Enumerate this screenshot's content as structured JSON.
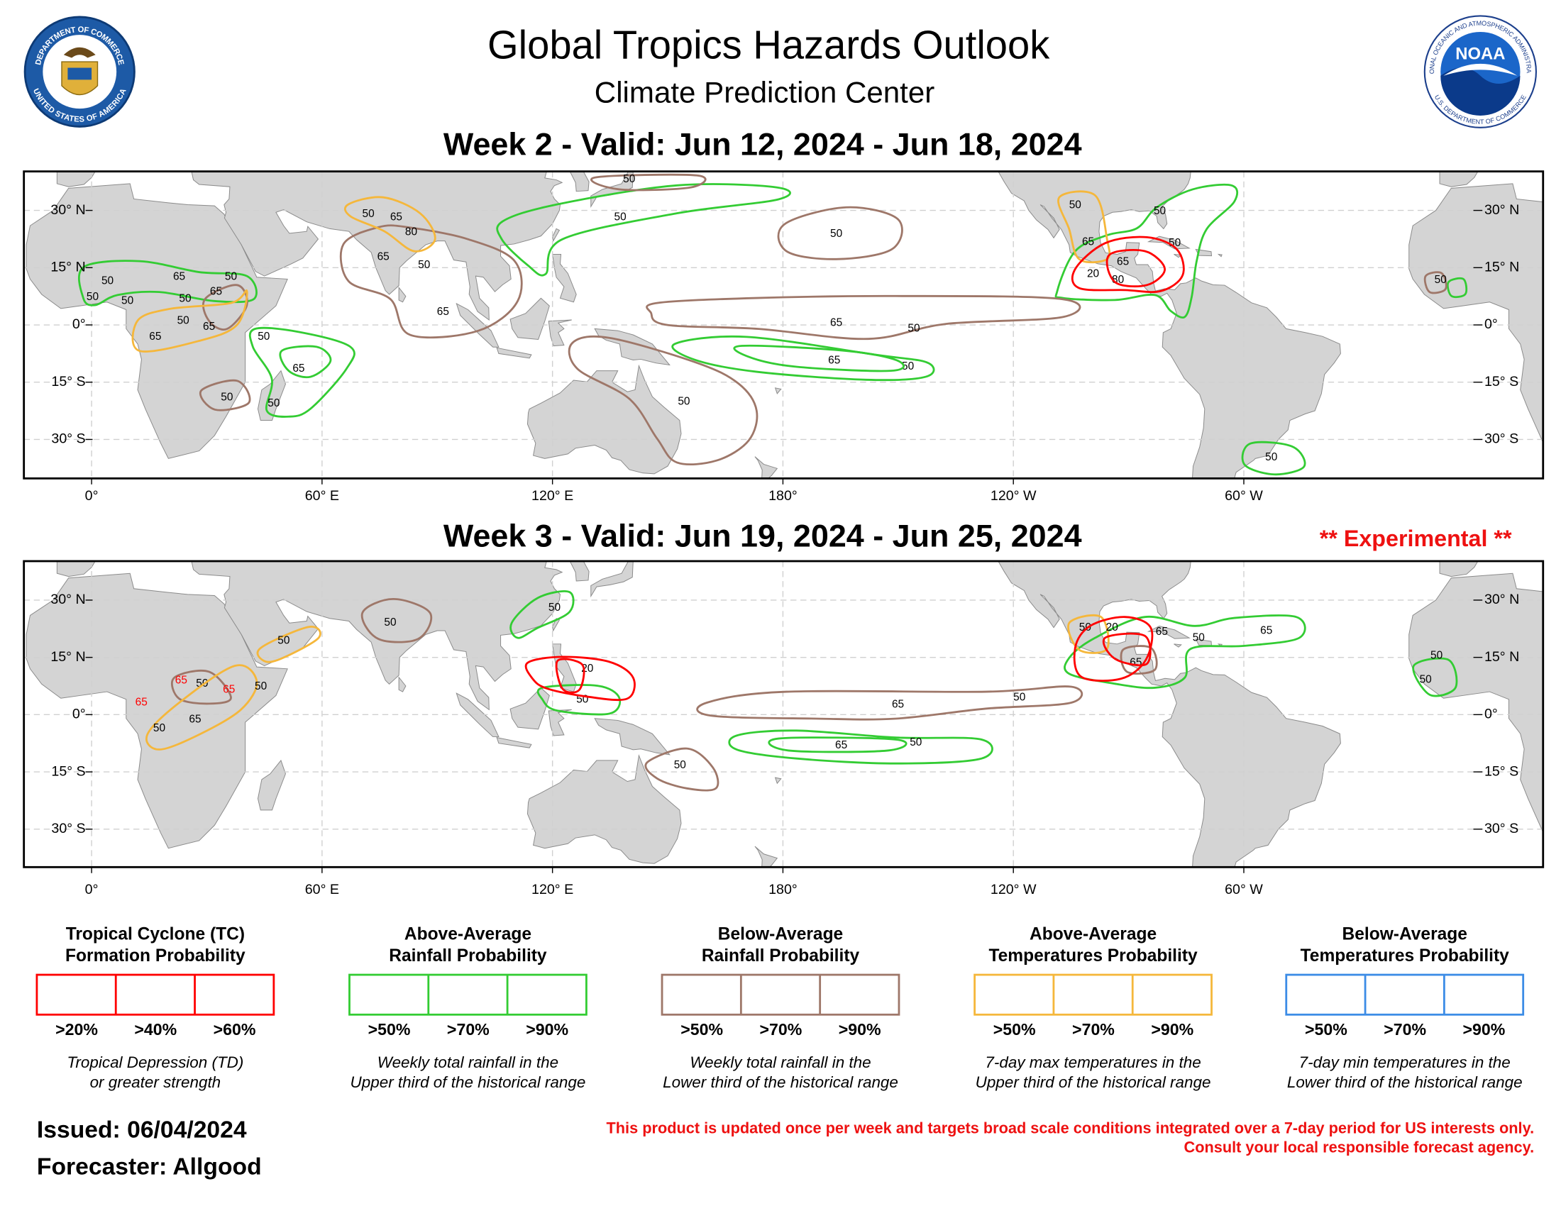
{
  "header": {
    "title": "Global Tropics Hazards Outlook",
    "subtitle": "Climate Prediction Center"
  },
  "logos": {
    "commerce": {
      "top": "DEPARTMENT OF COMMERCE",
      "bottom": "UNITED STATES OF AMERICA"
    },
    "noaa": {
      "name": "NOAA",
      "top": "NATIONAL OCEANIC AND ATMOSPHERIC ADMINISTRATION",
      "bottom": "U.S. DEPARTMENT OF COMMERCE"
    }
  },
  "axes": {
    "lat": [
      "30° N",
      "15° N",
      "0°",
      "15° S",
      "30° S"
    ],
    "lon": [
      "0°",
      "60° E",
      "120° E",
      "180°",
      "120° W",
      "60° W"
    ]
  },
  "maps": [
    {
      "title": "Week 2 - Valid: Jun 12, 2024 - Jun 18, 2024",
      "contour_labels": [
        "50",
        "50",
        "65",
        "50",
        "50",
        "50",
        "65",
        "50",
        "50",
        "65",
        "50",
        "50",
        "50",
        "50",
        "50",
        "65",
        "50",
        "65",
        "50",
        "50",
        "65",
        "50",
        "50",
        "50",
        "65",
        "50",
        "65",
        "50",
        "65",
        "50",
        "65",
        "80",
        "50",
        "65",
        "20",
        "65",
        "80"
      ]
    },
    {
      "title": "Week 3 - Valid: Jun 19, 2024 - Jun 25, 2024",
      "note": "** Experimental **",
      "contour_labels": [
        "50",
        "50",
        "65",
        "50",
        "65",
        "50",
        "65",
        "50",
        "50",
        "50",
        "50",
        "65",
        "50",
        "50",
        "65",
        "50",
        "65",
        "65",
        "65",
        "65",
        "50",
        "50",
        "50",
        "20",
        "20"
      ]
    }
  ],
  "legend": [
    {
      "title": [
        "Tropical Cyclone (TC)",
        "Formation Probability"
      ],
      "color": "#ff0000",
      "levels": [
        ">20%",
        ">40%",
        ">60%"
      ],
      "description": [
        "Tropical Depression (TD)",
        "or greater strength"
      ]
    },
    {
      "title": [
        "Above-Average",
        "Rainfall Probability"
      ],
      "color": "#33cc33",
      "levels": [
        ">50%",
        ">70%",
        ">90%"
      ],
      "description": [
        "Weekly total rainfall in the",
        "Upper third of the historical range"
      ]
    },
    {
      "title": [
        "Below-Average",
        "Rainfall Probability"
      ],
      "color": "#9e7769",
      "levels": [
        ">50%",
        ">70%",
        ">90%"
      ],
      "description": [
        "Weekly total rainfall in the",
        "Lower third of the historical range"
      ]
    },
    {
      "title": [
        "Above-Average",
        "Temperatures Probability"
      ],
      "color": "#f5b73b",
      "levels": [
        ">50%",
        ">70%",
        ">90%"
      ],
      "description": [
        "7-day max temperatures in the",
        "Upper third of the historical range"
      ]
    },
    {
      "title": [
        "Below-Average",
        "Temperatures Probability"
      ],
      "color": "#3c8ce6",
      "levels": [
        ">50%",
        ">70%",
        ">90%"
      ],
      "description": [
        "7-day min temperatures in the",
        "Lower third of the historical range"
      ]
    }
  ],
  "footer": {
    "issued": "Issued: 06/04/2024",
    "forecaster": "Forecaster: Allgood",
    "disclaimer": [
      "This product is updated once per week and targets broad scale conditions integrated over a 7-day period for US interests only.",
      "Consult your local responsible forecast agency."
    ]
  }
}
